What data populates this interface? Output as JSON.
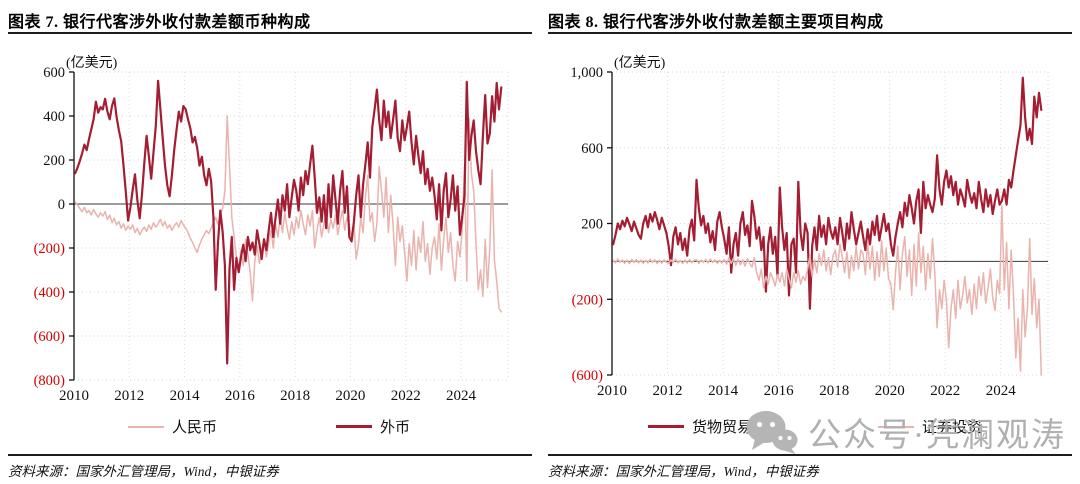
{
  "page": {
    "background": "#ffffff"
  },
  "colors": {
    "dark_red": "#a31e32",
    "light_pink": "#e9b3ae",
    "negative_tick": "#d40000",
    "positive_tick": "#111111",
    "grid": "#ddd9d6",
    "zero_line": "#3a3a3a",
    "title_rule": "#1c1c1c",
    "watermark_gray": "#b0b0b0"
  },
  "watermark": {
    "icon": "wechat-icon",
    "text": "公众号·凭澜观涛"
  },
  "chart_data": [
    {
      "id": "fig7",
      "type": "line",
      "title": "图表 7. 银行代客涉外收付款差额币种构成",
      "unit_label": "(亿美元)",
      "source": "资料来源：国家外汇管理局，Wind，中银证券",
      "x_tick_labels": [
        "2010",
        "2012",
        "2014",
        "2016",
        "2018",
        "2020",
        "2022",
        "2024"
      ],
      "x_range": [
        2010,
        2025.7
      ],
      "x_start_year": 2010,
      "points_per_year": 12,
      "ylim": [
        -800,
        600
      ],
      "grid": "dotted",
      "legend_position": "bottom",
      "y_ticks": [
        {
          "value": 600,
          "label": "600"
        },
        {
          "value": 400,
          "label": "400"
        },
        {
          "value": 200,
          "label": "200"
        },
        {
          "value": 0,
          "label": "0"
        },
        {
          "value": -200,
          "label": "(200)"
        },
        {
          "value": -400,
          "label": "(400)"
        },
        {
          "value": -600,
          "label": "(600)"
        },
        {
          "value": -800,
          "label": "(800)"
        }
      ],
      "series": [
        {
          "name": "人民币",
          "color": "#e9b3ae",
          "width": 1.5,
          "values": [
            10,
            -5,
            -20,
            -35,
            -15,
            -40,
            -30,
            -50,
            -25,
            -45,
            -60,
            -40,
            -55,
            -35,
            -70,
            -50,
            -85,
            -65,
            -95,
            -80,
            -110,
            -90,
            -120,
            -100,
            -115,
            -95,
            -130,
            -110,
            -140,
            -120,
            -105,
            -125,
            -95,
            -115,
            -85,
            -105,
            -90,
            -70,
            -100,
            -80,
            -110,
            -95,
            -120,
            -100,
            -85,
            -105,
            -75,
            -95,
            -110,
            -130,
            -155,
            -175,
            -200,
            -220,
            -185,
            -160,
            -140,
            -120,
            -135,
            -110,
            -85,
            -60,
            -95,
            -45,
            -20,
            60,
            400,
            175,
            -60,
            -150,
            -240,
            -300,
            -210,
            -280,
            -160,
            -230,
            -310,
            -440,
            -260,
            -190,
            -270,
            -210,
            -160,
            -240,
            -180,
            -120,
            -200,
            -90,
            -150,
            -60,
            -130,
            -40,
            -110,
            -160,
            -80,
            -140,
            -60,
            -110,
            -30,
            -90,
            -140,
            -50,
            -100,
            -30,
            -200,
            -120,
            -60,
            -150,
            -90,
            -40,
            -130,
            -70,
            -110,
            -50,
            -140,
            -80,
            -30,
            -120,
            -60,
            -100,
            -150,
            -90,
            -250,
            -180,
            -60,
            -130,
            30,
            130,
            -80,
            -40,
            -170,
            -90,
            170,
            60,
            -60,
            120,
            -130,
            40,
            -90,
            -280,
            -60,
            -170,
            -100,
            -220,
            -350,
            -180,
            -280,
            -120,
            -300,
            -150,
            -220,
            -80,
            -260,
            -180,
            -320,
            -200,
            -150,
            -250,
            -90,
            -300,
            -160,
            -60,
            -220,
            -130,
            -280,
            -350,
            -170,
            -240,
            -120,
            170,
            -350,
            390,
            140,
            60,
            -180,
            -390,
            -300,
            -420,
            -160,
            -380,
            -200,
            155,
            -255,
            -350,
            -475,
            -490
          ]
        },
        {
          "name": "外币",
          "color": "#a31e32",
          "width": 2.2,
          "values": [
            140,
            165,
            195,
            230,
            270,
            245,
            295,
            340,
            385,
            465,
            415,
            440,
            430,
            478,
            420,
            385,
            445,
            480,
            395,
            335,
            285,
            175,
            55,
            -75,
            -15,
            65,
            135,
            20,
            -65,
            45,
            185,
            310,
            215,
            115,
            235,
            355,
            560,
            430,
            300,
            175,
            85,
            35,
            130,
            245,
            335,
            420,
            375,
            445,
            430,
            385,
            345,
            280,
            305,
            255,
            175,
            215,
            130,
            85,
            160,
            105,
            -60,
            -390,
            -175,
            -30,
            -125,
            -280,
            -725,
            -295,
            -150,
            -390,
            -245,
            -310,
            -240,
            -185,
            -260,
            -150,
            -210,
            -175,
            -230,
            -120,
            -180,
            -250,
            -160,
            -210,
            -120,
            -40,
            -150,
            -60,
            20,
            -90,
            40,
            -30,
            90,
            -60,
            30,
            110,
            60,
            -30,
            120,
            40,
            150,
            90,
            180,
            265,
            120,
            -40,
            30,
            -80,
            40,
            -110,
            90,
            -60,
            130,
            20,
            -90,
            60,
            150,
            -40,
            80,
            -150,
            -170,
            -80,
            40,
            130,
            -60,
            90,
            180,
            280,
            120,
            350,
            430,
            520,
            380,
            290,
            470,
            350,
            420,
            300,
            380,
            470,
            300,
            240,
            380,
            290,
            350,
            420,
            280,
            180,
            310,
            220,
            140,
            240,
            90,
            160,
            60,
            120,
            40,
            -70,
            90,
            -120,
            60,
            140,
            -60,
            20,
            130,
            -30,
            80,
            -140,
            -60,
            40,
            555,
            200,
            310,
            380,
            240,
            155,
            90,
            310,
            495,
            275,
            320,
            490,
            375,
            550,
            430,
            530
          ]
        }
      ]
    },
    {
      "id": "fig8",
      "type": "line",
      "title": "图表 8. 银行代客涉外收付款差额主要项目构成",
      "unit_label": "(亿美元)",
      "source": "资料来源：国家外汇管理局，Wind，中银证券",
      "x_tick_labels": [
        "2010",
        "2012",
        "2014",
        "2016",
        "2018",
        "2020",
        "2022",
        "2024"
      ],
      "x_range": [
        2010,
        2025.7
      ],
      "x_start_year": 2010,
      "points_per_year": 12,
      "ylim": [
        -600,
        1000
      ],
      "grid": "dotted",
      "legend_position": "bottom",
      "y_ticks": [
        {
          "value": 1000,
          "label": "1,000"
        },
        {
          "value": 600,
          "label": "600"
        },
        {
          "value": 200,
          "label": "200"
        },
        {
          "value": -200,
          "label": "(200)"
        },
        {
          "value": -600,
          "label": "(600)"
        }
      ],
      "series": [
        {
          "name": "货物贸易",
          "color": "#a31e32",
          "width": 2.2,
          "values": [
            90,
            140,
            200,
            170,
            215,
            185,
            230,
            195,
            160,
            210,
            175,
            140,
            120,
            200,
            240,
            180,
            250,
            210,
            260,
            220,
            170,
            230,
            190,
            150,
            80,
            -20,
            130,
            180,
            90,
            150,
            60,
            120,
            30,
            170,
            220,
            110,
            430,
            280,
            190,
            240,
            150,
            200,
            100,
            160,
            60,
            210,
            260,
            180,
            120,
            40,
            180,
            -60,
            90,
            150,
            30,
            200,
            260,
            140,
            190,
            80,
            320,
            240,
            120,
            180,
            60,
            130,
            -160,
            90,
            180,
            40,
            130,
            -80,
            390,
            180,
            60,
            150,
            -180,
            90,
            120,
            -60,
            420,
            150,
            60,
            200,
            150,
            -250,
            80,
            180,
            60,
            240,
            130,
            190,
            90,
            230,
            160,
            120,
            180,
            90,
            230,
            150,
            60,
            200,
            120,
            260,
            170,
            90,
            150,
            210,
            130,
            60,
            170,
            90,
            210,
            140,
            240,
            110,
            180,
            250,
            160,
            200,
            90,
            30,
            130,
            200,
            260,
            180,
            310,
            240,
            350,
            280,
            200,
            320,
            380,
            150,
            420,
            280,
            350,
            300,
            260,
            330,
            560,
            380,
            300,
            420,
            480,
            390,
            450,
            350,
            420,
            300,
            380,
            340,
            290,
            430,
            360,
            310,
            360,
            280,
            420,
            330,
            260,
            380,
            290,
            350,
            250,
            320,
            380,
            300,
            320,
            380,
            300,
            430,
            390,
            480,
            560,
            640,
            720,
            970,
            760,
            640,
            700,
            620,
            870,
            760,
            890,
            800
          ]
        },
        {
          "name": "证券投资",
          "color": "#e9b3ae",
          "width": 1.5,
          "values": [
            5,
            -8,
            12,
            -5,
            8,
            -10,
            6,
            -12,
            10,
            -6,
            9,
            -8,
            7,
            -10,
            5,
            -8,
            11,
            -6,
            9,
            -12,
            6,
            -9,
            8,
            -5,
            -10,
            8,
            -6,
            12,
            -8,
            5,
            -11,
            7,
            -9,
            10,
            -7,
            6,
            9,
            -11,
            7,
            -5,
            10,
            -8,
            12,
            -6,
            8,
            -10,
            5,
            -9,
            10,
            -15,
            20,
            -10,
            15,
            -20,
            12,
            -18,
            8,
            -25,
            15,
            -12,
            -30,
            20,
            -60,
            -100,
            -40,
            -140,
            -80,
            -120,
            -60,
            -90,
            -130,
            -70,
            -110,
            -60,
            -130,
            -40,
            -90,
            -140,
            -60,
            -110,
            -50,
            -120,
            -80,
            -100,
            -40,
            30,
            -80,
            10,
            -60,
            40,
            -20,
            60,
            -50,
            20,
            -70,
            30,
            60,
            -30,
            90,
            20,
            -60,
            50,
            -90,
            30,
            -50,
            80,
            -40,
            60,
            40,
            -70,
            100,
            -40,
            80,
            -100,
            50,
            -80,
            110,
            -50,
            70,
            -90,
            -120,
            -255,
            -60,
            80,
            -150,
            40,
            130,
            -80,
            60,
            -180,
            90,
            -130,
            150,
            -60,
            80,
            -150,
            40,
            -90,
            120,
            -60,
            -350,
            -150,
            -250,
            -100,
            -200,
            -456,
            -250,
            -150,
            -300,
            -100,
            -250,
            -180,
            -80,
            -220,
            -150,
            -280,
            -120,
            -250,
            -80,
            -180,
            -60,
            -220,
            -140,
            -40,
            -190,
            -260,
            -100,
            -170,
            295,
            -150,
            100,
            -250,
            60,
            -180,
            -510,
            -300,
            -580,
            -150,
            -400,
            -250,
            120,
            -280,
            -90,
            -350,
            -200,
            -600
          ]
        }
      ]
    }
  ]
}
